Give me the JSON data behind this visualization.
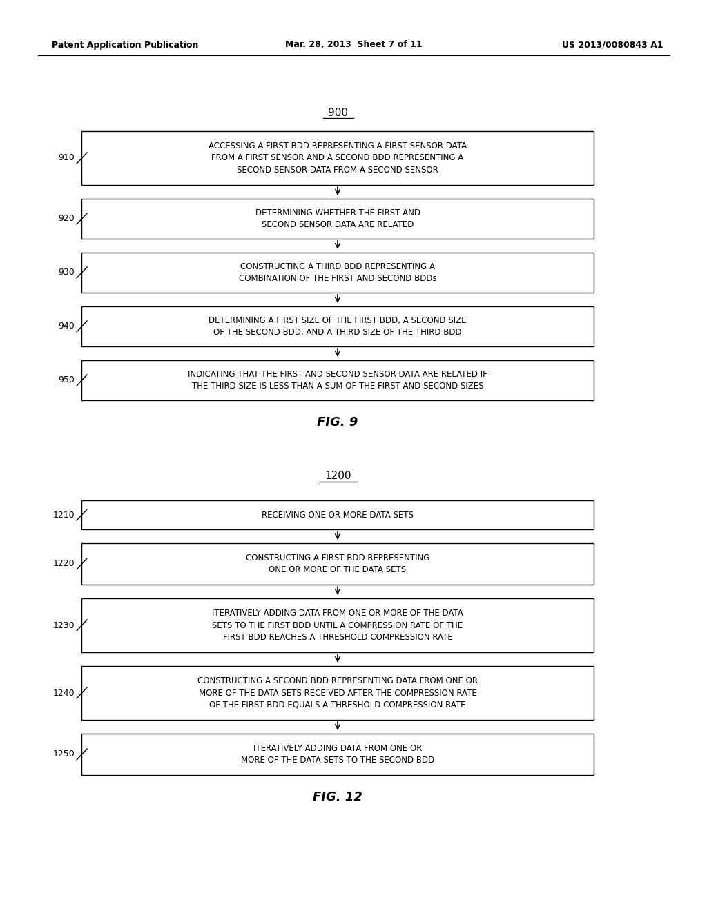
{
  "background_color": "#ffffff",
  "header_left": "Patent Application Publication",
  "header_mid": "Mar. 28, 2013  Sheet 7 of 11",
  "header_right": "US 2013/0080843 A1",
  "fig9": {
    "title": "900",
    "steps": [
      {
        "id": "910",
        "text": "ACCESSING A FIRST BDD REPRESENTING A FIRST SENSOR DATA\nFROM A FIRST SENSOR AND A SECOND BDD REPRESENTING A\nSECOND SENSOR DATA FROM A SECOND SENSOR",
        "lines": 3
      },
      {
        "id": "920",
        "text": "DETERMINING WHETHER THE FIRST AND\nSECOND SENSOR DATA ARE RELATED",
        "lines": 2
      },
      {
        "id": "930",
        "text": "CONSTRUCTING A THIRD BDD REPRESENTING A\nCOMBINATION OF THE FIRST AND SECOND BDDs",
        "lines": 2
      },
      {
        "id": "940",
        "text": "DETERMINING A FIRST SIZE OF THE FIRST BDD, A SECOND SIZE\nOF THE SECOND BDD, AND A THIRD SIZE OF THE THIRD BDD",
        "lines": 2
      },
      {
        "id": "950",
        "text": "INDICATING THAT THE FIRST AND SECOND SENSOR DATA ARE RELATED IF\nTHE THIRD SIZE IS LESS THAN A SUM OF THE FIRST AND SECOND SIZES",
        "lines": 2
      }
    ],
    "caption": "FIG. 9"
  },
  "fig12": {
    "title": "1200",
    "steps": [
      {
        "id": "1210",
        "text": "RECEIVING ONE OR MORE DATA SETS",
        "lines": 1
      },
      {
        "id": "1220",
        "text": "CONSTRUCTING A FIRST BDD REPRESENTING\nONE OR MORE OF THE DATA SETS",
        "lines": 2
      },
      {
        "id": "1230",
        "text": "ITERATIVELY ADDING DATA FROM ONE OR MORE OF THE DATA\nSETS TO THE FIRST BDD UNTIL A COMPRESSION RATE OF THE\nFIRST BDD REACHES A THRESHOLD COMPRESSION RATE",
        "lines": 3
      },
      {
        "id": "1240",
        "text": "CONSTRUCTING A SECOND BDD REPRESENTING DATA FROM ONE OR\nMORE OF THE DATA SETS RECEIVED AFTER THE COMPRESSION RATE\nOF THE FIRST BDD EQUALS A THRESHOLD COMPRESSION RATE",
        "lines": 3
      },
      {
        "id": "1250",
        "text": "ITERATIVELY ADDING DATA FROM ONE OR\nMORE OF THE DATA SETS TO THE SECOND BDD",
        "lines": 2
      }
    ],
    "caption": "FIG. 12"
  }
}
